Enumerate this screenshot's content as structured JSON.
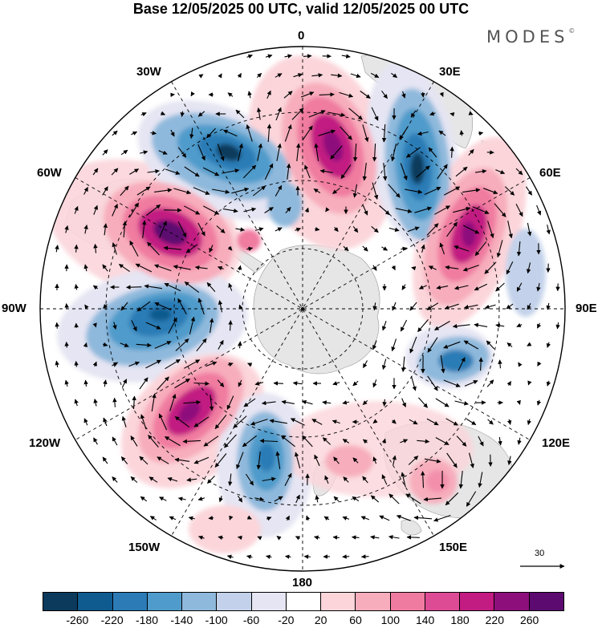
{
  "title": "Base 12/05/2025 00 UTC, valid 12/05/2025 00 UTC",
  "brand": "MODES",
  "brand_mark": "©",
  "longitude_labels": {
    "top": "0",
    "top_left": "30W",
    "top_right": "30E",
    "upper_left": "60W",
    "upper_right": "60E",
    "left": "90W",
    "right": "90E",
    "lower_left": "120W",
    "lower_right": "120E",
    "bottom_left": "150W",
    "bottom_right": "150E",
    "bottom": "180"
  },
  "vector_reference": "30",
  "colorbar": {
    "colors": [
      "#0b3a5c",
      "#0f5a8e",
      "#2c7bb6",
      "#4f9bcb",
      "#8fb9dc",
      "#c3d2ea",
      "#e5e5f3",
      "#ffffff",
      "#fbd5da",
      "#f7adbc",
      "#f07ba0",
      "#de4b95",
      "#c21b82",
      "#8d0f7b",
      "#5c0a70"
    ],
    "tick_labels": [
      "-260",
      "-220",
      "-180",
      "-140",
      "-100",
      "-60",
      "-20",
      "20",
      "60",
      "100",
      "140",
      "180",
      "220",
      "260"
    ]
  },
  "colors": {
    "land": "#e6e6e6",
    "ring": "#000000"
  }
}
